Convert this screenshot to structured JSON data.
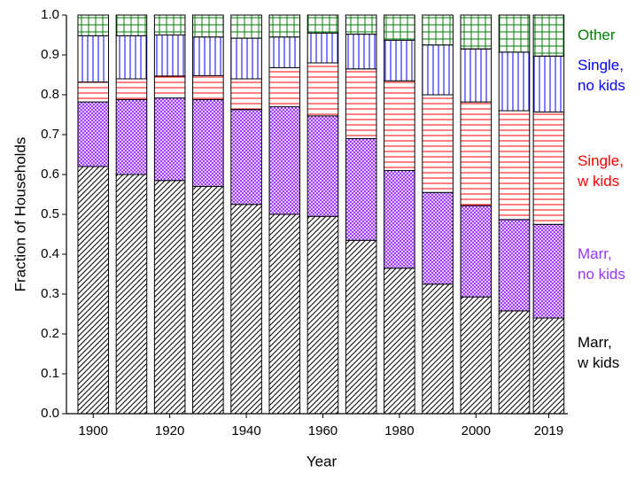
{
  "chart_data": {
    "type": "stacked_bar",
    "x_label": "Year",
    "y_label": "Fraction of Households",
    "x": [
      1900,
      1910,
      1920,
      1930,
      1940,
      1950,
      1960,
      1970,
      1980,
      1990,
      2000,
      2010,
      2019
    ],
    "xlim": [
      1893,
      2024
    ],
    "xticks": [
      1900,
      1920,
      1940,
      1960,
      1980,
      2000,
      2019
    ],
    "ylim": [
      0,
      1
    ],
    "yticks": [
      {
        "value": 0,
        "label": "0.0"
      },
      0.1,
      0.2,
      0.3,
      0.4,
      0.5,
      0.6,
      0.7,
      0.8,
      0.9,
      {
        "value": 1,
        "label": "1.0"
      }
    ],
    "series": [
      {
        "name": "Marr,\nw kids",
        "color": "#000000",
        "hatch": "diagonal",
        "values": [
          0.62,
          0.6,
          0.585,
          0.57,
          0.525,
          0.5,
          0.495,
          0.435,
          0.365,
          0.325,
          0.293,
          0.258,
          0.24
        ]
      },
      {
        "name": "Marr,\nno kids",
        "color": "#9933ff",
        "hatch": "crosshatch",
        "values": [
          0.162,
          0.188,
          0.207,
          0.218,
          0.238,
          0.27,
          0.252,
          0.255,
          0.245,
          0.23,
          0.229,
          0.229,
          0.235
        ]
      },
      {
        "name": "Single,\nw kids",
        "color": "#ff0000",
        "hatch": "horizontal",
        "values": [
          0.05,
          0.052,
          0.055,
          0.06,
          0.077,
          0.098,
          0.133,
          0.175,
          0.225,
          0.245,
          0.26,
          0.273,
          0.282
        ]
      },
      {
        "name": "Single,\nno kids",
        "color": "#0000ff",
        "hatch": "vertical",
        "values": [
          0.116,
          0.108,
          0.103,
          0.097,
          0.102,
          0.077,
          0.075,
          0.087,
          0.102,
          0.125,
          0.133,
          0.147,
          0.14
        ]
      },
      {
        "name": "Other",
        "color": "#008000",
        "hatch": "grid",
        "values": [
          0.052,
          0.052,
          0.05,
          0.055,
          0.058,
          0.055,
          0.045,
          0.048,
          0.063,
          0.075,
          0.085,
          0.093,
          0.103
        ]
      }
    ]
  }
}
